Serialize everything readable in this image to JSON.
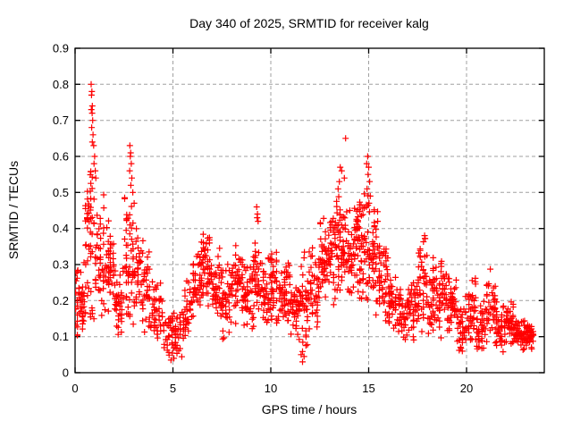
{
  "chart_data": {
    "type": "scatter",
    "title": "Day 340 of 2025, SRMTID for receiver kalg",
    "xlabel": "GPS time / hours",
    "ylabel": "SRMTID / TECUs",
    "xlim": [
      0,
      23.97
    ],
    "ylim": [
      0,
      0.9
    ],
    "xticks": [
      0,
      5,
      10,
      15,
      20
    ],
    "xtick_labels": [
      "0",
      "5",
      "10",
      "15",
      "20"
    ],
    "yticks": [
      0,
      0.1,
      0.2,
      0.3,
      0.4,
      0.5,
      0.6,
      0.7,
      0.8,
      0.9
    ],
    "ytick_labels": [
      "0",
      "0.1",
      "0.2",
      "0.3",
      "0.4",
      "0.5",
      "0.6",
      "0.7",
      "0.8",
      "0.9"
    ],
    "grid": true,
    "grid_color": "#a0a0a0",
    "grid_dash": "4 3",
    "axis_color": "#000000",
    "legend": "none",
    "series_name": "SRMTID",
    "marker": {
      "shape": "plus",
      "color": "#ff0000",
      "size": 7,
      "stroke_width": 1.2
    },
    "seed": 42,
    "density_bins": [
      [
        0.0,
        0.5,
        0.05,
        0.35,
        48
      ],
      [
        0.5,
        1.0,
        0.12,
        0.62,
        55
      ],
      [
        1.0,
        1.5,
        0.13,
        0.5,
        45
      ],
      [
        1.5,
        2.0,
        0.15,
        0.44,
        42
      ],
      [
        2.0,
        2.5,
        0.08,
        0.3,
        36
      ],
      [
        2.5,
        3.0,
        0.1,
        0.5,
        50
      ],
      [
        3.0,
        3.5,
        0.12,
        0.42,
        42
      ],
      [
        3.5,
        4.0,
        0.1,
        0.34,
        36
      ],
      [
        4.0,
        4.5,
        0.07,
        0.26,
        36
      ],
      [
        4.5,
        5.0,
        0.03,
        0.2,
        32
      ],
      [
        5.0,
        5.5,
        0.04,
        0.18,
        32
      ],
      [
        5.5,
        6.0,
        0.08,
        0.26,
        36
      ],
      [
        6.0,
        6.5,
        0.14,
        0.38,
        46
      ],
      [
        6.5,
        7.0,
        0.15,
        0.42,
        46
      ],
      [
        7.0,
        7.5,
        0.12,
        0.36,
        42
      ],
      [
        7.5,
        8.0,
        0.08,
        0.31,
        40
      ],
      [
        8.0,
        8.5,
        0.1,
        0.38,
        42
      ],
      [
        8.5,
        9.0,
        0.08,
        0.33,
        40
      ],
      [
        9.0,
        9.5,
        0.1,
        0.4,
        44
      ],
      [
        9.5,
        10.0,
        0.1,
        0.33,
        40
      ],
      [
        10.0,
        10.5,
        0.12,
        0.35,
        44
      ],
      [
        10.5,
        11.0,
        0.1,
        0.33,
        42
      ],
      [
        11.0,
        11.5,
        0.08,
        0.3,
        40
      ],
      [
        11.5,
        12.0,
        0.03,
        0.36,
        40
      ],
      [
        12.0,
        12.5,
        0.1,
        0.36,
        42
      ],
      [
        12.5,
        13.0,
        0.15,
        0.45,
        46
      ],
      [
        13.0,
        13.5,
        0.18,
        0.5,
        50
      ],
      [
        13.5,
        14.0,
        0.2,
        0.5,
        48
      ],
      [
        14.0,
        14.5,
        0.18,
        0.48,
        50
      ],
      [
        14.5,
        15.0,
        0.15,
        0.52,
        50
      ],
      [
        15.0,
        15.5,
        0.15,
        0.5,
        46
      ],
      [
        15.5,
        16.0,
        0.12,
        0.4,
        42
      ],
      [
        16.0,
        16.5,
        0.1,
        0.3,
        40
      ],
      [
        16.5,
        17.0,
        0.08,
        0.26,
        40
      ],
      [
        17.0,
        17.5,
        0.08,
        0.28,
        40
      ],
      [
        17.5,
        18.0,
        0.1,
        0.4,
        44
      ],
      [
        18.0,
        18.5,
        0.08,
        0.36,
        42
      ],
      [
        18.5,
        19.0,
        0.08,
        0.31,
        40
      ],
      [
        19.0,
        19.5,
        0.07,
        0.3,
        40
      ],
      [
        19.5,
        20.0,
        0.05,
        0.22,
        38
      ],
      [
        20.0,
        20.5,
        0.06,
        0.3,
        40
      ],
      [
        20.5,
        21.0,
        0.04,
        0.22,
        38
      ],
      [
        21.0,
        21.5,
        0.06,
        0.3,
        40
      ],
      [
        21.5,
        22.0,
        0.05,
        0.2,
        40
      ],
      [
        22.0,
        22.5,
        0.06,
        0.22,
        46
      ],
      [
        22.5,
        23.0,
        0.06,
        0.16,
        46
      ],
      [
        23.0,
        23.45,
        0.06,
        0.14,
        42
      ]
    ],
    "outlier_points": [
      [
        0.82,
        0.8
      ],
      [
        0.86,
        0.78
      ],
      [
        0.84,
        0.77
      ],
      [
        0.88,
        0.74
      ],
      [
        0.83,
        0.73
      ],
      [
        0.87,
        0.72
      ],
      [
        0.9,
        0.7
      ],
      [
        0.85,
        0.68
      ],
      [
        0.92,
        0.66
      ],
      [
        0.88,
        0.64
      ],
      [
        0.95,
        0.63
      ],
      [
        1.0,
        0.6
      ],
      [
        0.97,
        0.58
      ],
      [
        1.03,
        0.56
      ],
      [
        1.06,
        0.54
      ],
      [
        2.8,
        0.63
      ],
      [
        2.84,
        0.61
      ],
      [
        2.82,
        0.6
      ],
      [
        2.87,
        0.58
      ],
      [
        2.79,
        0.56
      ],
      [
        2.9,
        0.54
      ],
      [
        2.85,
        0.52
      ],
      [
        2.95,
        0.5
      ],
      [
        3.02,
        0.47
      ],
      [
        9.28,
        0.46
      ],
      [
        9.32,
        0.44
      ],
      [
        9.3,
        0.43
      ],
      [
        9.35,
        0.42
      ],
      [
        13.82,
        0.65
      ],
      [
        13.55,
        0.57
      ],
      [
        13.62,
        0.56
      ],
      [
        13.76,
        0.54
      ],
      [
        13.5,
        0.53
      ],
      [
        13.44,
        0.51
      ],
      [
        14.95,
        0.6
      ],
      [
        14.9,
        0.58
      ],
      [
        15.0,
        0.57
      ],
      [
        14.97,
        0.55
      ],
      [
        15.05,
        0.53
      ],
      [
        14.92,
        0.51
      ],
      [
        15.08,
        0.49
      ],
      [
        15.02,
        0.47
      ],
      [
        14.88,
        0.46
      ],
      [
        4.9,
        0.035
      ],
      [
        5.05,
        0.04
      ],
      [
        11.62,
        0.03
      ],
      [
        11.7,
        0.045
      ],
      [
        11.55,
        0.05
      ]
    ]
  }
}
